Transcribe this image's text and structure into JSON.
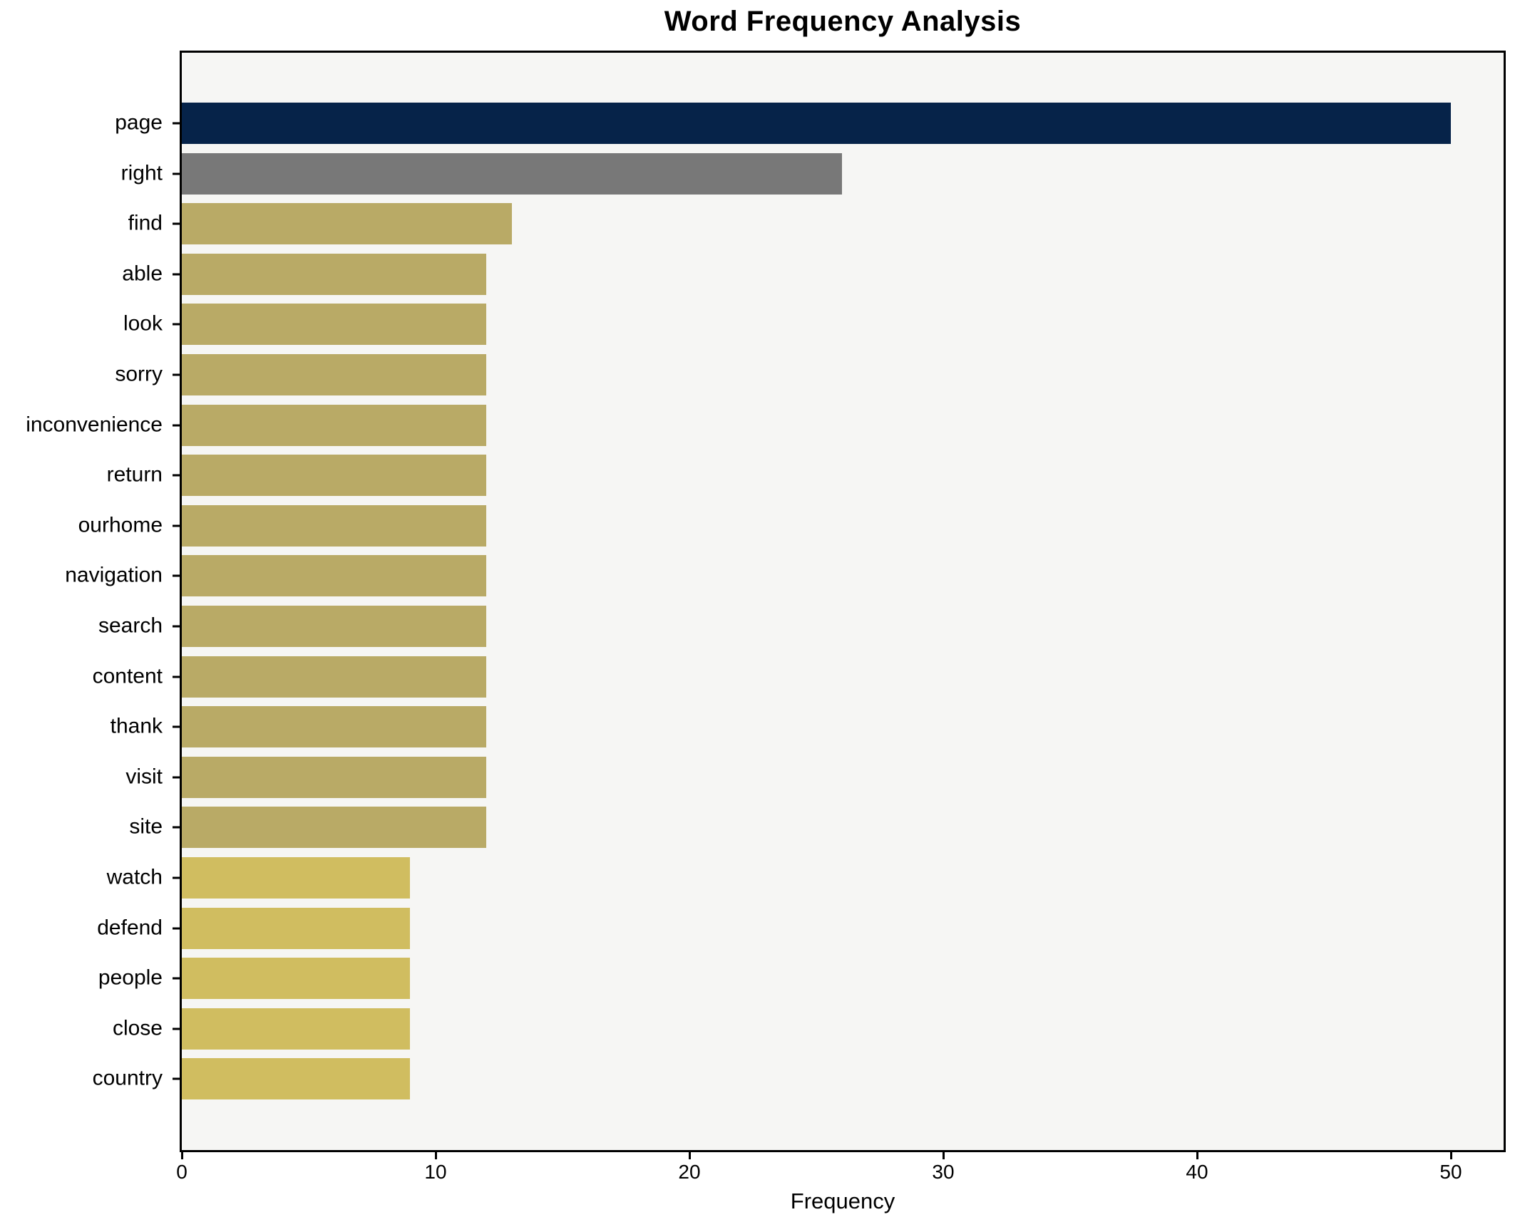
{
  "chart_data": {
    "type": "bar",
    "orientation": "horizontal",
    "title": "Word Frequency Analysis",
    "xlabel": "Frequency",
    "ylabel": "",
    "categories": [
      "page",
      "right",
      "find",
      "able",
      "look",
      "sorry",
      "inconvenience",
      "return",
      "ourhome",
      "navigation",
      "search",
      "content",
      "thank",
      "visit",
      "site",
      "watch",
      "defend",
      "people",
      "close",
      "country"
    ],
    "values": [
      50,
      26,
      13,
      12,
      12,
      12,
      12,
      12,
      12,
      12,
      12,
      12,
      12,
      12,
      12,
      9,
      9,
      9,
      9,
      9
    ],
    "bar_colors": [
      "#062349",
      "#787878",
      "#b9aa66",
      "#b9aa66",
      "#b9aa66",
      "#b9aa66",
      "#b9aa66",
      "#b9aa66",
      "#b9aa66",
      "#b9aa66",
      "#b9aa66",
      "#b9aa66",
      "#b9aa66",
      "#b9aa66",
      "#b9aa66",
      "#d0bd60",
      "#d0bd60",
      "#d0bd60",
      "#d0bd60",
      "#d0bd60"
    ],
    "xlim": [
      0,
      52.1
    ],
    "xticks": [
      0,
      10,
      20,
      30,
      40,
      50
    ],
    "xtick_labels": [
      "0",
      "10",
      "20",
      "30",
      "40",
      "50"
    ],
    "grid": false,
    "legend": null,
    "plot_background": "#f6f6f4",
    "figure_background": "#ffffff",
    "spine_color": "#000000"
  }
}
